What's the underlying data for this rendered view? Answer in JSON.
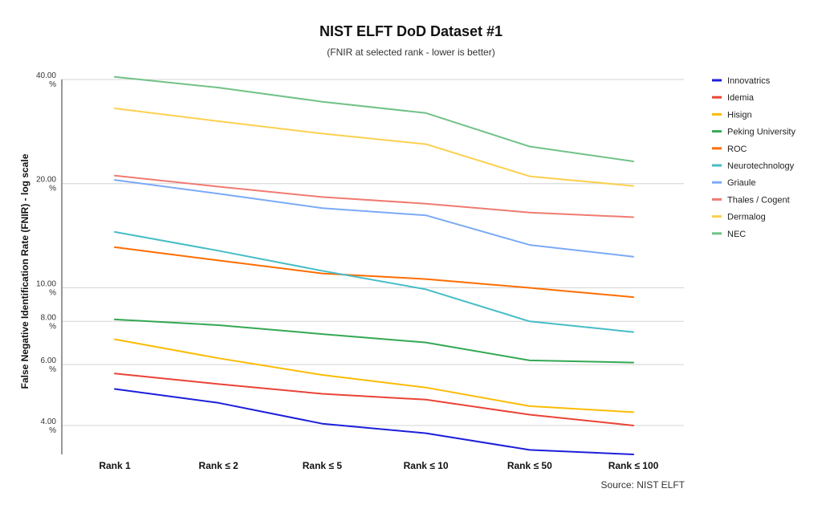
{
  "chart_data": {
    "type": "line",
    "title": "NIST ELFT DoD Dataset #1",
    "subtitle": "(FNIR at selected rank - lower is better)",
    "ylabel": "False Negative Identification Rate (FNIR) - log scale",
    "xlabel": "",
    "source": "Source: NIST ELFT",
    "y_scale": "log",
    "ylim": [
      3.3,
      40.0
    ],
    "y_ticks": [
      {
        "value": 4,
        "label": "4.00",
        "unit": "%"
      },
      {
        "value": 6,
        "label": "6.00",
        "unit": "%"
      },
      {
        "value": 8,
        "label": "8.00",
        "unit": "%"
      },
      {
        "value": 10,
        "label": "10.00",
        "unit": "%"
      },
      {
        "value": 20,
        "label": "20.00",
        "unit": "%"
      },
      {
        "value": 40,
        "label": "40.00",
        "unit": "%"
      }
    ],
    "grid": true,
    "legend_position": "right",
    "categories": [
      "Rank 1",
      "Rank ≤ 2",
      "Rank ≤ 5",
      "Rank ≤ 10",
      "Rank ≤ 50",
      "Rank ≤ 100"
    ],
    "series": [
      {
        "name": "Innovatrics",
        "color": "#1c1fd9",
        "values": [
          5.1,
          4.65,
          4.05,
          3.8,
          3.4,
          3.3
        ]
      },
      {
        "name": "Idemia",
        "color": "#ea4335",
        "values": [
          5.65,
          5.27,
          4.94,
          4.75,
          4.3,
          4.0
        ]
      },
      {
        "name": "Hisign",
        "color": "#fbbc04",
        "values": [
          7.1,
          6.26,
          5.6,
          5.15,
          4.55,
          4.37
        ]
      },
      {
        "name": "Peking University",
        "color": "#34a853",
        "values": [
          8.1,
          7.8,
          7.35,
          6.95,
          6.17,
          6.08
        ]
      },
      {
        "name": "ROC",
        "color": "#ff6d01",
        "values": [
          13.1,
          12.0,
          11.0,
          10.6,
          10.0,
          9.4
        ]
      },
      {
        "name": "Neurotechnology",
        "color": "#46bdc6",
        "values": [
          14.5,
          12.8,
          11.2,
          9.9,
          8.0,
          7.45
        ]
      },
      {
        "name": "Griaule",
        "color": "#7baaf7",
        "values": [
          20.5,
          18.7,
          17.0,
          16.2,
          13.3,
          12.3
        ]
      },
      {
        "name": "Thales / Cogent",
        "color": "#f07b72",
        "values": [
          21.1,
          19.6,
          18.3,
          17.5,
          16.5,
          16.0
        ]
      },
      {
        "name": "Dermalog",
        "color": "#fcd04f",
        "values": [
          33.0,
          30.3,
          27.9,
          26.0,
          21.0,
          19.7
        ]
      },
      {
        "name": "NEC",
        "color": "#71c287",
        "values": [
          40.7,
          37.9,
          34.5,
          32.0,
          25.6,
          23.2
        ]
      }
    ]
  }
}
